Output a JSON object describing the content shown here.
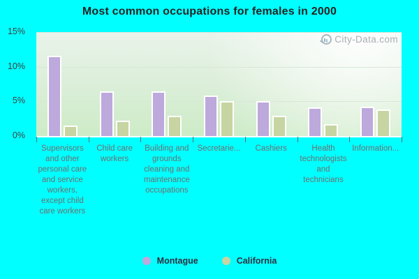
{
  "title": "Most common occupations for females in 2000",
  "watermark": {
    "text": "City-Data.com"
  },
  "colors": {
    "background": "#00ffff",
    "montague_bar": "#bda9dc",
    "california_bar": "#c6d5a1",
    "bar_border": "#ffffff",
    "title_text": "#232323",
    "y_axis_label": "#3f3f3f",
    "category_label": "#6f6f6f",
    "legend_text": "#2e2e3e",
    "grid_line": "#d9e6d8",
    "tick_mark": "#5c7070",
    "watermark_text": "#a8aeb4"
  },
  "chart_data": {
    "type": "bar",
    "title": "Most common occupations for females in 2000",
    "categories": [
      "Supervisors and other personal care and service workers, except child care workers",
      "Child care workers",
      "Building and grounds cleaning and maintenance occupations",
      "Secretarie...",
      "Cashiers",
      "Health technologists and technicians",
      "Information..."
    ],
    "series": [
      {
        "name": "Montague",
        "color": "#bda9dc",
        "values": [
          11.6,
          6.4,
          6.4,
          5.8,
          5.0,
          4.1,
          4.2
        ]
      },
      {
        "name": "California",
        "color": "#c6d5a1",
        "values": [
          1.5,
          2.2,
          2.9,
          5.0,
          2.9,
          1.7,
          3.8
        ]
      }
    ],
    "xlabel": "",
    "ylabel": "",
    "ylim": [
      0,
      15
    ],
    "yticks": [
      {
        "label": "15%",
        "value": 15
      },
      {
        "label": "10%",
        "value": 10
      },
      {
        "label": "5%",
        "value": 5
      },
      {
        "label": "0%",
        "value": 0
      }
    ],
    "grid": true,
    "legend_position": "bottom"
  },
  "legend": {
    "items": [
      {
        "label": "Montague",
        "color": "#bda9dc"
      },
      {
        "label": "California",
        "color": "#c6d5a1"
      }
    ]
  }
}
